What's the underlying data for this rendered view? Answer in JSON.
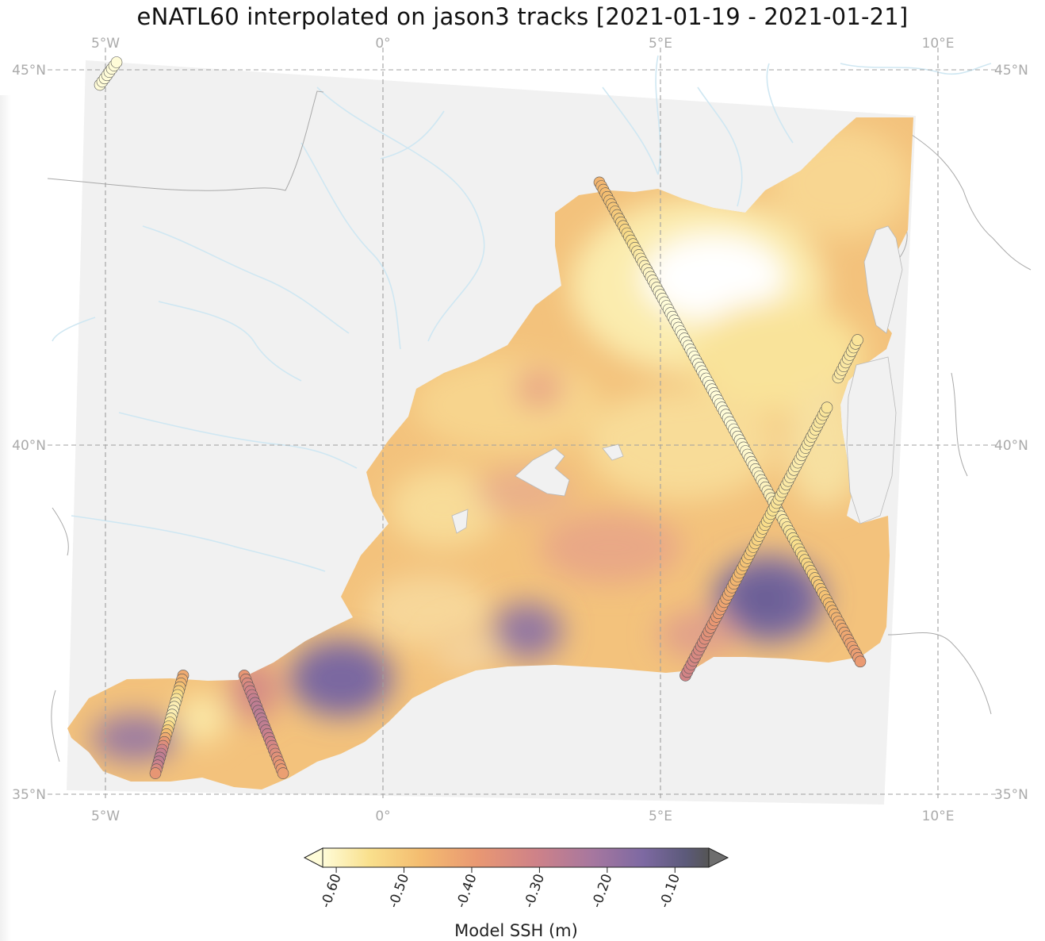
{
  "title": "eNATL60 interpolated on jason3 tracks [2021-01-19 - 2021-01-21]",
  "map": {
    "lon_range": [
      -5.5,
      10.5
    ],
    "lat_range": [
      35,
      45
    ],
    "lon_ticks": [
      "5°W",
      "0°",
      "5°E",
      "10°E"
    ],
    "lat_ticks": [
      "45°N",
      "40°N",
      "35°N"
    ],
    "colors": {
      "land": "#f1f1f1",
      "coast": "#a8a8a8",
      "rivers": "#cfe7f2",
      "grid": "#9a9a9a"
    }
  },
  "colorbar": {
    "label": "Model SSH (m)",
    "ticks": [
      "-0.60",
      "-0.50",
      "-0.40",
      "-0.30",
      "-0.20",
      "-0.10"
    ],
    "range": [
      -0.62,
      -0.05
    ],
    "cmap": [
      "#fffcd8",
      "#f9e08d",
      "#f4bd70",
      "#e99872",
      "#cf8288",
      "#a6779f",
      "#7d69a2",
      "#5c5a7a",
      "#6b6b6b"
    ]
  },
  "tracks": [
    {
      "name": "track-1",
      "from": [
        -3.6,
        36.7
      ],
      "to": [
        -4.1,
        35.3
      ],
      "ssh": [
        -0.44,
        -0.46,
        -0.5,
        -0.55,
        -0.58,
        -0.59,
        -0.58,
        -0.55,
        -0.5,
        -0.44,
        -0.38,
        -0.32,
        -0.3,
        -0.33,
        -0.4
      ]
    },
    {
      "name": "track-2",
      "from": [
        -2.5,
        36.7
      ],
      "to": [
        -1.8,
        35.3
      ],
      "ssh": [
        -0.4,
        -0.36,
        -0.33,
        -0.31,
        -0.3,
        -0.3,
        -0.31,
        -0.33,
        -0.35,
        -0.38,
        -0.4,
        -0.42
      ]
    },
    {
      "name": "track-3",
      "from": [
        3.9,
        43.5
      ],
      "to": [
        8.6,
        36.9
      ],
      "ssh": [
        -0.46,
        -0.5,
        -0.55,
        -0.6,
        -0.62,
        -0.62,
        -0.62,
        -0.62,
        -0.62,
        -0.61,
        -0.6,
        -0.58,
        -0.55,
        -0.52,
        -0.48,
        -0.44,
        -0.41
      ]
    },
    {
      "name": "track-4",
      "from": [
        5.45,
        36.7
      ],
      "to": [
        8.0,
        40.5
      ],
      "ssh": [
        -0.34,
        -0.36,
        -0.4,
        -0.44,
        -0.48,
        -0.52,
        -0.55,
        -0.57,
        -0.58,
        -0.57,
        -0.56
      ]
    },
    {
      "name": "track-5",
      "from": [
        8.2,
        40.9
      ],
      "to": [
        8.55,
        41.4
      ],
      "ssh": [
        -0.57,
        -0.57,
        -0.56
      ]
    },
    {
      "name": "track-6",
      "from": [
        -5.1,
        44.8
      ],
      "to": [
        -4.8,
        45.1
      ],
      "ssh": [
        -0.62,
        -0.62,
        -0.62
      ]
    }
  ]
}
